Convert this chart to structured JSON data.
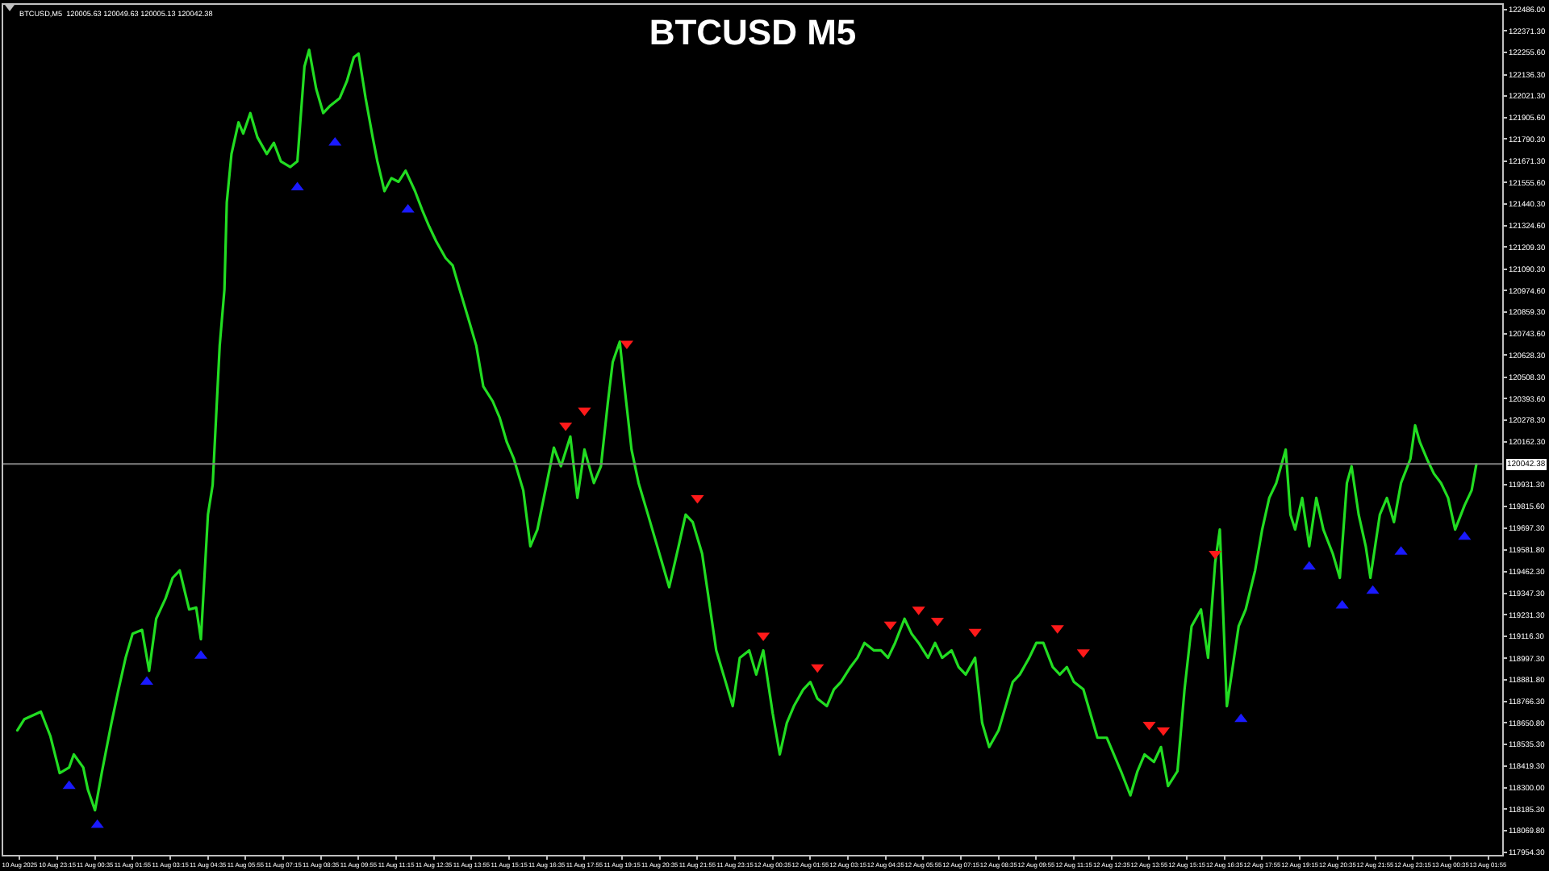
{
  "chart_data": {
    "type": "line",
    "title": "BTCUSD M5",
    "annotations": [
      "BTCUSD,M5  120005.63 120049.63 120005.13 120042.38"
    ],
    "xlim": [
      "2025-08-10T21:20",
      "2025-08-13T02:25"
    ],
    "xticks": [
      {
        "value": "2025-08-10T21:55",
        "label": "10 Aug 2025"
      },
      {
        "value": "2025-08-10T23:15",
        "label": "10 Aug 23:15"
      },
      {
        "value": "2025-08-11T00:35",
        "label": "11 Aug 00:35"
      },
      {
        "value": "2025-08-11T01:55",
        "label": "11 Aug 01:55"
      },
      {
        "value": "2025-08-11T03:15",
        "label": "11 Aug 03:15"
      },
      {
        "value": "2025-08-11T04:35",
        "label": "11 Aug 04:35"
      },
      {
        "value": "2025-08-11T05:55",
        "label": "11 Aug 05:55"
      },
      {
        "value": "2025-08-11T07:15",
        "label": "11 Aug 07:15"
      },
      {
        "value": "2025-08-11T08:35",
        "label": "11 Aug 08:35"
      },
      {
        "value": "2025-08-11T09:55",
        "label": "11 Aug 09:55"
      },
      {
        "value": "2025-08-11T11:15",
        "label": "11 Aug 11:15"
      },
      {
        "value": "2025-08-11T12:35",
        "label": "11 Aug 12:35"
      },
      {
        "value": "2025-08-11T13:55",
        "label": "11 Aug 13:55"
      },
      {
        "value": "2025-08-11T15:15",
        "label": "11 Aug 15:15"
      },
      {
        "value": "2025-08-11T16:35",
        "label": "11 Aug 16:35"
      },
      {
        "value": "2025-08-11T17:55",
        "label": "11 Aug 17:55"
      },
      {
        "value": "2025-08-11T19:15",
        "label": "11 Aug 19:15"
      },
      {
        "value": "2025-08-11T20:35",
        "label": "11 Aug 20:35"
      },
      {
        "value": "2025-08-11T21:55",
        "label": "11 Aug 21:55"
      },
      {
        "value": "2025-08-11T23:15",
        "label": "11 Aug 23:15"
      },
      {
        "value": "2025-08-12T00:35",
        "label": "12 Aug 00:35"
      },
      {
        "value": "2025-08-12T01:55",
        "label": "12 Aug 01:55"
      },
      {
        "value": "2025-08-12T03:15",
        "label": "12 Aug 03:15"
      },
      {
        "value": "2025-08-12T04:35",
        "label": "12 Aug 04:35"
      },
      {
        "value": "2025-08-12T05:55",
        "label": "12 Aug 05:55"
      },
      {
        "value": "2025-08-12T07:15",
        "label": "12 Aug 07:15"
      },
      {
        "value": "2025-08-12T08:35",
        "label": "12 Aug 08:35"
      },
      {
        "value": "2025-08-12T09:55",
        "label": "12 Aug 09:55"
      },
      {
        "value": "2025-08-12T11:15",
        "label": "12 Aug 11:15"
      },
      {
        "value": "2025-08-12T12:35",
        "label": "12 Aug 12:35"
      },
      {
        "value": "2025-08-12T13:55",
        "label": "12 Aug 13:55"
      },
      {
        "value": "2025-08-12T15:15",
        "label": "12 Aug 15:15"
      },
      {
        "value": "2025-08-12T16:35",
        "label": "12 Aug 16:35"
      },
      {
        "value": "2025-08-12T17:55",
        "label": "12 Aug 17:55"
      },
      {
        "value": "2025-08-12T19:15",
        "label": "12 Aug 19:15"
      },
      {
        "value": "2025-08-12T20:35",
        "label": "12 Aug 20:35"
      },
      {
        "value": "2025-08-12T21:55",
        "label": "12 Aug 21:55"
      },
      {
        "value": "2025-08-12T23:15",
        "label": "12 Aug 23:15"
      },
      {
        "value": "2025-08-13T00:35",
        "label": "13 Aug 00:35"
      },
      {
        "value": "2025-08-13T01:55",
        "label": "13 Aug 01:55"
      }
    ],
    "ylim": [
      117940,
      122512
    ],
    "yticks": [
      {
        "value": 122486,
        "label": "122486.00"
      },
      {
        "value": 122371.3,
        "label": "122371.30"
      },
      {
        "value": 122255.6,
        "label": "122255.60"
      },
      {
        "value": 122136.3,
        "label": "122136.30"
      },
      {
        "value": 122021.3,
        "label": "122021.30"
      },
      {
        "value": 121905.6,
        "label": "121905.60"
      },
      {
        "value": 121790.3,
        "label": "121790.30"
      },
      {
        "value": 121671.3,
        "label": "121671.30"
      },
      {
        "value": 121555.6,
        "label": "121555.60"
      },
      {
        "value": 121440.3,
        "label": "121440.30"
      },
      {
        "value": 121324.6,
        "label": "121324.60"
      },
      {
        "value": 121209.3,
        "label": "121209.30"
      },
      {
        "value": 121090.3,
        "label": "121090.30"
      },
      {
        "value": 120974.6,
        "label": "120974.60"
      },
      {
        "value": 120859.3,
        "label": "120859.30"
      },
      {
        "value": 120743.6,
        "label": "120743.60"
      },
      {
        "value": 120628.3,
        "label": "120628.30"
      },
      {
        "value": 120508.3,
        "label": "120508.30"
      },
      {
        "value": 120393.6,
        "label": "120393.60"
      },
      {
        "value": 120278.3,
        "label": "120278.30"
      },
      {
        "value": 120162.3,
        "label": "120162.30"
      },
      {
        "value": 119931.3,
        "label": "119931.30"
      },
      {
        "value": 119815.6,
        "label": "119815.60"
      },
      {
        "value": 119697.3,
        "label": "119697.30"
      },
      {
        "value": 119581.8,
        "label": "119581.80"
      },
      {
        "value": 119462.3,
        "label": "119462.30"
      },
      {
        "value": 119347.3,
        "label": "119347.30"
      },
      {
        "value": 119231.3,
        "label": "119231.30"
      },
      {
        "value": 119116.3,
        "label": "119116.30"
      },
      {
        "value": 118997.3,
        "label": "118997.30"
      },
      {
        "value": 118881.8,
        "label": "118881.80"
      },
      {
        "value": 118766.3,
        "label": "118766.30"
      },
      {
        "value": 118650.8,
        "label": "118650.80"
      },
      {
        "value": 118535.3,
        "label": "118535.30"
      },
      {
        "value": 118419.3,
        "label": "118419.30"
      },
      {
        "value": 118300,
        "label": "118300.00"
      },
      {
        "value": 118185.3,
        "label": "118185.30"
      },
      {
        "value": 118069.8,
        "label": "118069.80"
      },
      {
        "value": 117954.3,
        "label": "117954.30"
      }
    ],
    "ref_lines": [
      {
        "axis": "y",
        "value": 120042.38,
        "label": "120042.38",
        "color": "#808080"
      }
    ],
    "series": [
      {
        "type": "line",
        "color": "#22dd22",
        "marker": "none",
        "line_style": "solid",
        "x": [
          "2025-08-10T21:50",
          "2025-08-10T22:05",
          "2025-08-10T22:40",
          "2025-08-10T23:00",
          "2025-08-10T23:20",
          "2025-08-10T23:40",
          "2025-08-10T23:50",
          "2025-08-11T00:10",
          "2025-08-11T00:20",
          "2025-08-11T00:35",
          "2025-08-11T00:50",
          "2025-08-11T01:10",
          "2025-08-11T01:25",
          "2025-08-11T01:40",
          "2025-08-11T01:55",
          "2025-08-11T02:15",
          "2025-08-11T02:30",
          "2025-08-11T02:45",
          "2025-08-11T03:05",
          "2025-08-11T03:20",
          "2025-08-11T03:35",
          "2025-08-11T03:55",
          "2025-08-11T04:10",
          "2025-08-11T04:20",
          "2025-08-11T04:35",
          "2025-08-11T04:45",
          "2025-08-11T05:00",
          "2025-08-11T05:10",
          "2025-08-11T05:15",
          "2025-08-11T05:25",
          "2025-08-11T05:40",
          "2025-08-11T05:50",
          "2025-08-11T06:05",
          "2025-08-11T06:20",
          "2025-08-11T06:40",
          "2025-08-11T06:55",
          "2025-08-11T07:10",
          "2025-08-11T07:30",
          "2025-08-11T07:45",
          "2025-08-11T08:00",
          "2025-08-11T08:10",
          "2025-08-11T08:25",
          "2025-08-11T08:40",
          "2025-08-11T08:55",
          "2025-08-11T09:15",
          "2025-08-11T09:30",
          "2025-08-11T09:45",
          "2025-08-11T09:55",
          "2025-08-11T10:10",
          "2025-08-11T10:25",
          "2025-08-11T10:35",
          "2025-08-11T10:50",
          "2025-08-11T11:05",
          "2025-08-11T11:20",
          "2025-08-11T11:35",
          "2025-08-11T11:55",
          "2025-08-11T12:10",
          "2025-08-11T12:25",
          "2025-08-11T12:40",
          "2025-08-11T13:00",
          "2025-08-11T13:15",
          "2025-08-11T13:30",
          "2025-08-11T13:50",
          "2025-08-11T14:05",
          "2025-08-11T14:20",
          "2025-08-11T14:40",
          "2025-08-11T14:55",
          "2025-08-11T15:10",
          "2025-08-11T15:25",
          "2025-08-11T15:45",
          "2025-08-11T16:00",
          "2025-08-11T16:15",
          "2025-08-11T16:35",
          "2025-08-11T16:50",
          "2025-08-11T17:05",
          "2025-08-11T17:25",
          "2025-08-11T17:40",
          "2025-08-11T17:55",
          "2025-08-11T18:15",
          "2025-08-11T18:30",
          "2025-08-11T18:45",
          "2025-08-11T18:55",
          "2025-08-11T19:10",
          "2025-08-11T19:20",
          "2025-08-11T19:35",
          "2025-08-11T19:50",
          "2025-08-11T20:10",
          "2025-08-11T20:25",
          "2025-08-11T20:40",
          "2025-08-11T20:55",
          "2025-08-11T21:15",
          "2025-08-11T21:30",
          "2025-08-11T21:45",
          "2025-08-11T22:05",
          "2025-08-11T22:20",
          "2025-08-11T22:35",
          "2025-08-11T22:55",
          "2025-08-11T23:10",
          "2025-08-11T23:25",
          "2025-08-11T23:45",
          "2025-08-12T00:00",
          "2025-08-12T00:15",
          "2025-08-12T00:35",
          "2025-08-12T00:50",
          "2025-08-12T01:05",
          "2025-08-12T01:20",
          "2025-08-12T01:40",
          "2025-08-12T01:55",
          "2025-08-12T02:10",
          "2025-08-12T02:30",
          "2025-08-12T02:45",
          "2025-08-12T03:00",
          "2025-08-12T03:20",
          "2025-08-12T03:35",
          "2025-08-12T03:50",
          "2025-08-12T04:10",
          "2025-08-12T04:25",
          "2025-08-12T04:40",
          "2025-08-12T04:55",
          "2025-08-12T05:15",
          "2025-08-12T05:30",
          "2025-08-12T05:45",
          "2025-08-12T06:05",
          "2025-08-12T06:20",
          "2025-08-12T06:35",
          "2025-08-12T06:55",
          "2025-08-12T07:10",
          "2025-08-12T07:25",
          "2025-08-12T07:45",
          "2025-08-12T08:00",
          "2025-08-12T08:15",
          "2025-08-12T08:35",
          "2025-08-12T08:50",
          "2025-08-12T09:05",
          "2025-08-12T09:20",
          "2025-08-12T09:40",
          "2025-08-12T09:55",
          "2025-08-12T10:10",
          "2025-08-12T10:30",
          "2025-08-12T10:45",
          "2025-08-12T11:00",
          "2025-08-12T11:15",
          "2025-08-12T11:35",
          "2025-08-12T11:50",
          "2025-08-12T12:05",
          "2025-08-12T12:25",
          "2025-08-12T12:40",
          "2025-08-12T12:55",
          "2025-08-12T13:15",
          "2025-08-12T13:30",
          "2025-08-12T13:45",
          "2025-08-12T14:05",
          "2025-08-12T14:20",
          "2025-08-12T14:35",
          "2025-08-12T14:55",
          "2025-08-12T15:10",
          "2025-08-12T15:25",
          "2025-08-12T15:45",
          "2025-08-12T16:00",
          "2025-08-12T16:15",
          "2025-08-12T16:25",
          "2025-08-12T16:40",
          "2025-08-12T16:50",
          "2025-08-12T17:05",
          "2025-08-12T17:20",
          "2025-08-12T17:40",
          "2025-08-12T17:55",
          "2025-08-12T18:10",
          "2025-08-12T18:25",
          "2025-08-12T18:45",
          "2025-08-12T18:55",
          "2025-08-12T19:05",
          "2025-08-12T19:20",
          "2025-08-12T19:35",
          "2025-08-12T19:50",
          "2025-08-12T20:05",
          "2025-08-12T20:25",
          "2025-08-12T20:40",
          "2025-08-12T20:55",
          "2025-08-12T21:05",
          "2025-08-12T21:20",
          "2025-08-12T21:35",
          "2025-08-12T21:45",
          "2025-08-12T22:05",
          "2025-08-12T22:20",
          "2025-08-12T22:35",
          "2025-08-12T22:50",
          "2025-08-12T23:10",
          "2025-08-12T23:20",
          "2025-08-12T23:30",
          "2025-08-12T23:45",
          "2025-08-13T00:00",
          "2025-08-13T00:15",
          "2025-08-13T00:30",
          "2025-08-13T00:45",
          "2025-08-13T01:05",
          "2025-08-13T01:20",
          "2025-08-13T01:30"
        ],
        "values": [
          118610,
          118670,
          118710,
          118580,
          118380,
          118410,
          118480,
          118410,
          118290,
          118180,
          118390,
          118650,
          118830,
          119000,
          119130,
          119150,
          118930,
          119210,
          119320,
          119430,
          119470,
          119260,
          119270,
          119100,
          119770,
          119930,
          120680,
          120980,
          121450,
          121710,
          121880,
          121820,
          121930,
          121800,
          121710,
          121770,
          121670,
          121640,
          121670,
          122180,
          122270,
          122060,
          121930,
          121970,
          122010,
          122100,
          122230,
          122250,
          122010,
          121800,
          121670,
          121510,
          121580,
          121560,
          121620,
          121510,
          121410,
          121320,
          121240,
          121150,
          121110,
          120980,
          120810,
          120680,
          120460,
          120380,
          120290,
          120160,
          120070,
          119900,
          119600,
          119690,
          119940,
          120130,
          120030,
          120190,
          119860,
          120120,
          119940,
          120030,
          120380,
          120590,
          120700,
          120460,
          120120,
          119940,
          119770,
          119640,
          119510,
          119380,
          119600,
          119770,
          119730,
          119560,
          119300,
          119040,
          118870,
          118740,
          119000,
          119040,
          118910,
          119040,
          118700,
          118480,
          118650,
          118740,
          118830,
          118870,
          118780,
          118740,
          118830,
          118870,
          118950,
          119000,
          119080,
          119040,
          119040,
          119000,
          119080,
          119210,
          119130,
          119080,
          119000,
          119080,
          119000,
          119040,
          118950,
          118910,
          119000,
          118650,
          118520,
          118610,
          118740,
          118870,
          118910,
          119000,
          119080,
          119080,
          118950,
          118910,
          118950,
          118870,
          118830,
          118700,
          118570,
          118570,
          118480,
          118390,
          118260,
          118390,
          118480,
          118440,
          118520,
          118310,
          118390,
          118830,
          119170,
          119260,
          119000,
          119510,
          119690,
          118740,
          118910,
          119170,
          119260,
          119470,
          119690,
          119860,
          119940,
          120120,
          119770,
          119690,
          119860,
          119600,
          119860,
          119690,
          119560,
          119430,
          119940,
          120030,
          119770,
          119600,
          119430,
          119770,
          119860,
          119730,
          119940,
          120070,
          120250,
          120160,
          120070,
          119990,
          119940,
          119860,
          119690,
          119820,
          119900,
          120040
        ]
      },
      {
        "type": "scatter",
        "color": "#1a1aff",
        "marker": "triangle",
        "x": [
          "2025-08-10T23:40",
          "2025-08-11T00:40",
          "2025-08-11T02:25",
          "2025-08-11T04:20",
          "2025-08-11T07:45",
          "2025-08-11T09:05",
          "2025-08-11T11:40",
          "2025-08-12T17:10",
          "2025-08-12T19:35",
          "2025-08-12T20:45",
          "2025-08-12T21:50",
          "2025-08-12T22:50",
          "2025-08-13T01:05"
        ],
        "values": [
          118310,
          118100,
          118870,
          119010,
          121530,
          121770,
          121410,
          118670,
          119490,
          119280,
          119360,
          119570,
          119650
        ]
      },
      {
        "type": "scatter",
        "color": "#ff1a1a",
        "marker": "triangle",
        "x": [
          "2025-08-11T17:15",
          "2025-08-11T17:55",
          "2025-08-11T19:25",
          "2025-08-11T21:55",
          "2025-08-12T00:15",
          "2025-08-12T02:10",
          "2025-08-12T04:45",
          "2025-08-12T05:45",
          "2025-08-12T06:25",
          "2025-08-12T07:45",
          "2025-08-12T10:40",
          "2025-08-12T11:35",
          "2025-08-12T13:55",
          "2025-08-12T14:25",
          "2025-08-12T16:15"
        ],
        "values": [
          120250,
          120330,
          120690,
          119860,
          119120,
          118950,
          119180,
          119260,
          119200,
          119140,
          119160,
          119030,
          118640,
          118610,
          119560
        ]
      }
    ]
  }
}
